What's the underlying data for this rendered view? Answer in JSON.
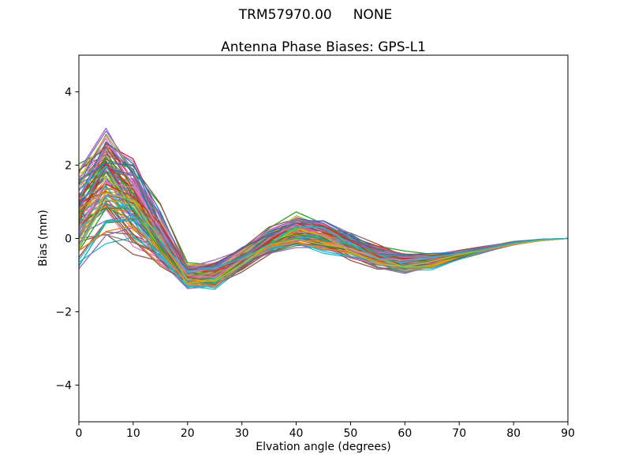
{
  "figure": {
    "suptitle": "TRM57970.00     NONE",
    "background": "#ffffff"
  },
  "chart_data": {
    "type": "line",
    "title": "Antenna Phase Biases: GPS-L1",
    "xlabel": "Elvation angle (degrees)",
    "ylabel": "Bias (mm)",
    "xlim": [
      0,
      90
    ],
    "ylim": [
      -5,
      5
    ],
    "xticks": [
      0,
      10,
      20,
      30,
      40,
      50,
      60,
      70,
      80,
      90
    ],
    "yticks": [
      -4,
      -2,
      0,
      2,
      4
    ],
    "grid": false,
    "legend": null,
    "x": [
      0,
      5,
      10,
      15,
      20,
      25,
      30,
      35,
      40,
      45,
      50,
      55,
      60,
      65,
      70,
      75,
      80,
      85,
      90
    ],
    "ensemble": {
      "description": "Dense bundle of antenna phase bias curves (one per calibration), all damped oscillations converging to 0 mm at 90 degrees",
      "n_lines": 110,
      "mean": [
        0.7,
        1.6,
        1.0,
        0.0,
        -1.0,
        -0.95,
        -0.55,
        -0.1,
        0.25,
        0.1,
        -0.2,
        -0.5,
        -0.65,
        -0.6,
        -0.45,
        -0.28,
        -0.13,
        -0.04,
        0.0
      ],
      "spread": [
        1.3,
        1.4,
        1.2,
        0.8,
        0.3,
        0.35,
        0.3,
        0.35,
        0.4,
        0.4,
        0.35,
        0.3,
        0.25,
        0.2,
        0.12,
        0.07,
        0.04,
        0.02,
        0.0
      ],
      "seed": 42,
      "line_width": 1.3,
      "palette": [
        "#1f77b4",
        "#ff7f0e",
        "#2ca02c",
        "#d62728",
        "#9467bd",
        "#8c564b",
        "#e377c2",
        "#7f7f7f",
        "#bcbd22",
        "#17becf"
      ]
    }
  }
}
